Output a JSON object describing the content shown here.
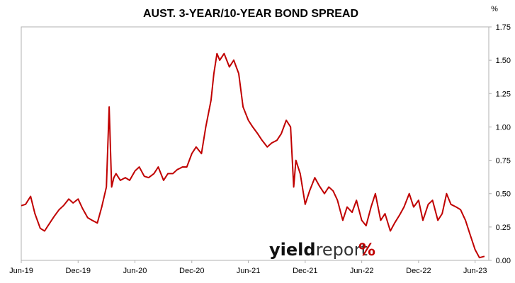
{
  "chart_data": {
    "type": "line",
    "title": "AUST. 3-YEAR/10-YEAR BOND SPREAD",
    "unit_label": "%",
    "ylabel": "",
    "xlabel": "",
    "y_axis_position": "right",
    "ylim": [
      0,
      1.75
    ],
    "yticks": [
      "0.00",
      "0.25",
      "0.50",
      "0.75",
      "1.00",
      "1.25",
      "1.50",
      "1.75"
    ],
    "xlim": [
      "2019-06-01",
      "2023-07-15"
    ],
    "xticks": [
      {
        "date": "2019-06-01",
        "label": "Jun-19"
      },
      {
        "date": "2019-12-01",
        "label": "Dec-19"
      },
      {
        "date": "2020-06-01",
        "label": "Jun-20"
      },
      {
        "date": "2020-12-01",
        "label": "Dec-20"
      },
      {
        "date": "2021-06-01",
        "label": "Jun-21"
      },
      {
        "date": "2021-12-01",
        "label": "Dec-21"
      },
      {
        "date": "2022-06-01",
        "label": "Jun-22"
      },
      {
        "date": "2022-12-01",
        "label": "Dec-22"
      },
      {
        "date": "2023-06-01",
        "label": "Jun-23"
      }
    ],
    "grid": false,
    "legend": "none",
    "line_color": "#c00000",
    "series": [
      {
        "x": [
          "2019-06-01",
          "2019-06-15",
          "2019-07-01",
          "2019-07-15",
          "2019-08-01",
          "2019-08-15",
          "2019-09-01",
          "2019-09-15",
          "2019-10-01",
          "2019-10-15",
          "2019-11-01",
          "2019-11-15",
          "2019-12-01",
          "2019-12-15",
          "2020-01-01",
          "2020-01-15",
          "2020-02-01",
          "2020-02-15",
          "2020-03-01",
          "2020-03-10",
          "2020-03-18",
          "2020-03-25",
          "2020-04-01",
          "2020-04-15",
          "2020-05-01",
          "2020-05-15",
          "2020-06-01",
          "2020-06-15",
          "2020-07-01",
          "2020-07-15",
          "2020-08-01",
          "2020-08-15",
          "2020-09-01",
          "2020-09-15",
          "2020-10-01",
          "2020-10-15",
          "2020-11-01",
          "2020-11-15",
          "2020-12-01",
          "2020-12-15",
          "2021-01-01",
          "2021-01-15",
          "2021-02-01",
          "2021-02-10",
          "2021-02-20",
          "2021-03-01",
          "2021-03-15",
          "2021-04-01",
          "2021-04-15",
          "2021-05-01",
          "2021-05-15",
          "2021-06-01",
          "2021-06-15",
          "2021-07-01",
          "2021-07-15",
          "2021-08-01",
          "2021-08-15",
          "2021-09-01",
          "2021-09-15",
          "2021-10-01",
          "2021-10-15",
          "2021-10-25",
          "2021-11-01",
          "2021-11-15",
          "2021-12-01",
          "2021-12-15",
          "2022-01-01",
          "2022-01-15",
          "2022-02-01",
          "2022-02-15",
          "2022-03-01",
          "2022-03-15",
          "2022-04-01",
          "2022-04-15",
          "2022-05-01",
          "2022-05-15",
          "2022-06-01",
          "2022-06-15",
          "2022-07-01",
          "2022-07-15",
          "2022-08-01",
          "2022-08-15",
          "2022-09-01",
          "2022-09-15",
          "2022-10-01",
          "2022-10-15",
          "2022-11-01",
          "2022-11-15",
          "2022-12-01",
          "2022-12-15",
          "2023-01-01",
          "2023-01-15",
          "2023-02-01",
          "2023-02-15",
          "2023-03-01",
          "2023-03-15",
          "2023-04-01",
          "2023-04-15",
          "2023-05-01",
          "2023-05-15",
          "2023-06-01",
          "2023-06-15",
          "2023-07-01"
        ],
        "y": [
          0.41,
          0.42,
          0.48,
          0.35,
          0.24,
          0.22,
          0.28,
          0.33,
          0.38,
          0.41,
          0.46,
          0.43,
          0.46,
          0.39,
          0.32,
          0.3,
          0.28,
          0.4,
          0.55,
          1.15,
          0.55,
          0.62,
          0.65,
          0.6,
          0.62,
          0.6,
          0.67,
          0.7,
          0.63,
          0.62,
          0.65,
          0.7,
          0.6,
          0.65,
          0.65,
          0.68,
          0.7,
          0.7,
          0.8,
          0.85,
          0.8,
          1.0,
          1.2,
          1.4,
          1.55,
          1.5,
          1.55,
          1.45,
          1.5,
          1.4,
          1.15,
          1.05,
          1.0,
          0.95,
          0.9,
          0.85,
          0.88,
          0.9,
          0.95,
          1.05,
          1.0,
          0.55,
          0.75,
          0.65,
          0.42,
          0.52,
          0.62,
          0.56,
          0.5,
          0.55,
          0.52,
          0.45,
          0.3,
          0.4,
          0.36,
          0.45,
          0.3,
          0.26,
          0.4,
          0.5,
          0.3,
          0.35,
          0.22,
          0.28,
          0.34,
          0.4,
          0.5,
          0.4,
          0.45,
          0.3,
          0.42,
          0.45,
          0.3,
          0.35,
          0.5,
          0.42,
          0.4,
          0.38,
          0.3,
          0.2,
          0.08,
          0.02,
          0.03
        ]
      }
    ]
  },
  "watermark": {
    "brand_main": "yield",
    "brand_second": "report",
    "brand_symbol": "%",
    "symbol_colors": [
      "#c00000",
      "#2e8b3c"
    ]
  }
}
